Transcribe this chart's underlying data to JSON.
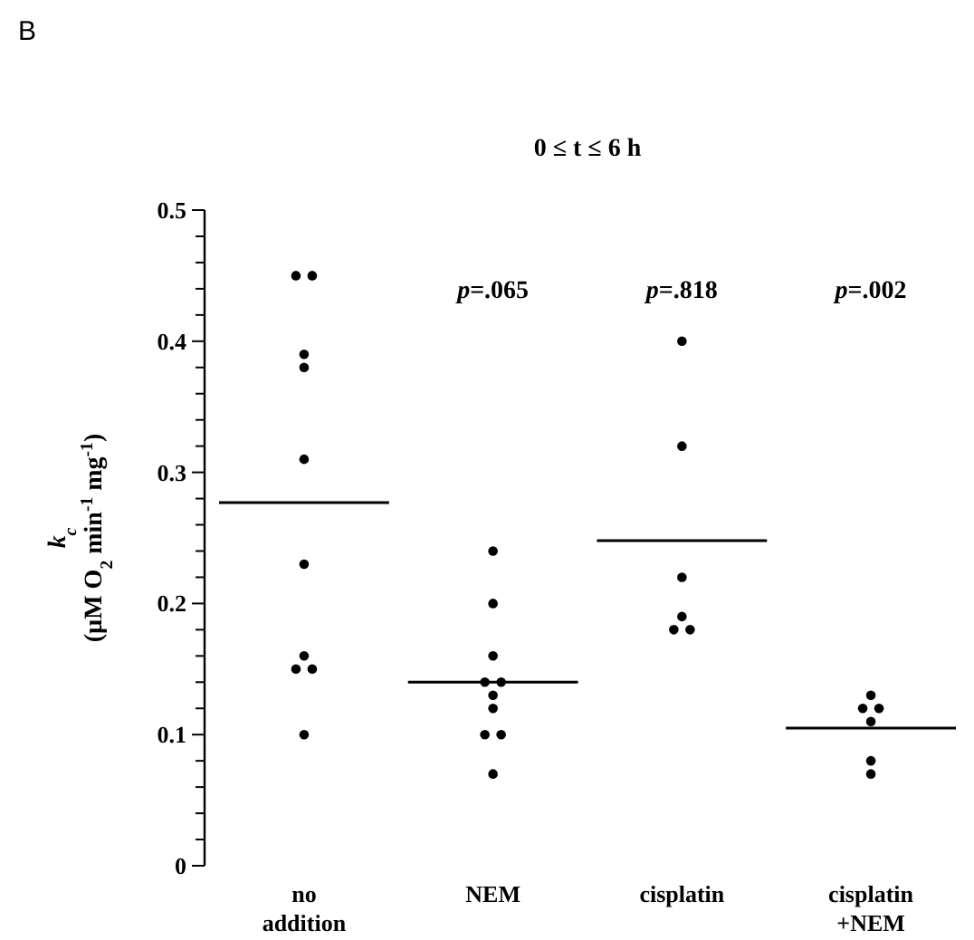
{
  "chart_data": {
    "type": "scatter",
    "title": "0 ≤ t ≤ 6 h",
    "ylabel": "k$_{c}$ (µM O$_{2}$ min$^{-1}$ mg$^{-1}$)",
    "categories": [
      "no addition",
      "NEM",
      "cisplatin",
      "cisplatin +NEM"
    ],
    "ylim": [
      0,
      0.5
    ],
    "yticks": [
      0,
      {
        "value": 0.02,
        "label": null
      },
      {
        "value": 0.04,
        "label": null
      },
      {
        "value": 0.06,
        "label": null
      },
      {
        "value": 0.08,
        "label": null
      },
      0.1,
      {
        "value": 0.12,
        "label": null
      },
      {
        "value": 0.14,
        "label": null
      },
      {
        "value": 0.16,
        "label": null
      },
      {
        "value": 0.18,
        "label": null
      },
      0.2,
      {
        "value": 0.22,
        "label": null
      },
      {
        "value": 0.24,
        "label": null
      },
      {
        "value": 0.26,
        "label": null
      },
      {
        "value": 0.28,
        "label": null
      },
      0.3,
      {
        "value": 0.32,
        "label": null
      },
      {
        "value": 0.34,
        "label": null
      },
      {
        "value": 0.36,
        "label": null
      },
      {
        "value": 0.38,
        "label": null
      },
      0.4,
      {
        "value": 0.42,
        "label": null
      },
      {
        "value": 0.44,
        "label": null
      },
      {
        "value": 0.46,
        "label": null
      },
      {
        "value": 0.48,
        "label": null
      },
      0.5
    ],
    "series": [
      {
        "color": "#000000",
        "x": [
          "no addition",
          "no addition",
          "no addition",
          "no addition",
          "no addition",
          "no addition",
          "no addition",
          "no addition",
          "no addition",
          "no addition",
          "NEM",
          "NEM",
          "NEM",
          "NEM",
          "NEM",
          "NEM",
          "NEM",
          "NEM",
          "NEM",
          "NEM",
          "cisplatin",
          "cisplatin",
          "cisplatin",
          "cisplatin",
          "cisplatin",
          "cisplatin",
          "cisplatin +NEM",
          "cisplatin +NEM",
          "cisplatin +NEM",
          "cisplatin +NEM",
          "cisplatin +NEM",
          "cisplatin +NEM"
        ],
        "values": [
          0.45,
          0.45,
          0.39,
          0.38,
          0.31,
          0.23,
          0.15,
          0.15,
          0.16,
          0.1,
          0.24,
          0.2,
          0.16,
          0.14,
          0.14,
          0.13,
          0.12,
          0.1,
          0.1,
          0.07,
          0.4,
          0.32,
          0.22,
          0.18,
          0.18,
          0.19,
          0.13,
          0.12,
          0.12,
          0.11,
          0.08,
          0.07
        ]
      }
    ],
    "ref_lines": [
      {
        "axis": "y",
        "value": 0.277,
        "color": "#000000"
      },
      {
        "axis": "y",
        "value": 0.14,
        "color": "#000000"
      },
      {
        "axis": "y",
        "value": 0.248,
        "color": "#000000"
      },
      {
        "axis": "y",
        "value": 0.105,
        "color": "#000000"
      }
    ],
    "marker": "circle",
    "grid": false,
    "annotations": [
      "B",
      "p=.065",
      "p=.818",
      "p=.002"
    ]
  }
}
